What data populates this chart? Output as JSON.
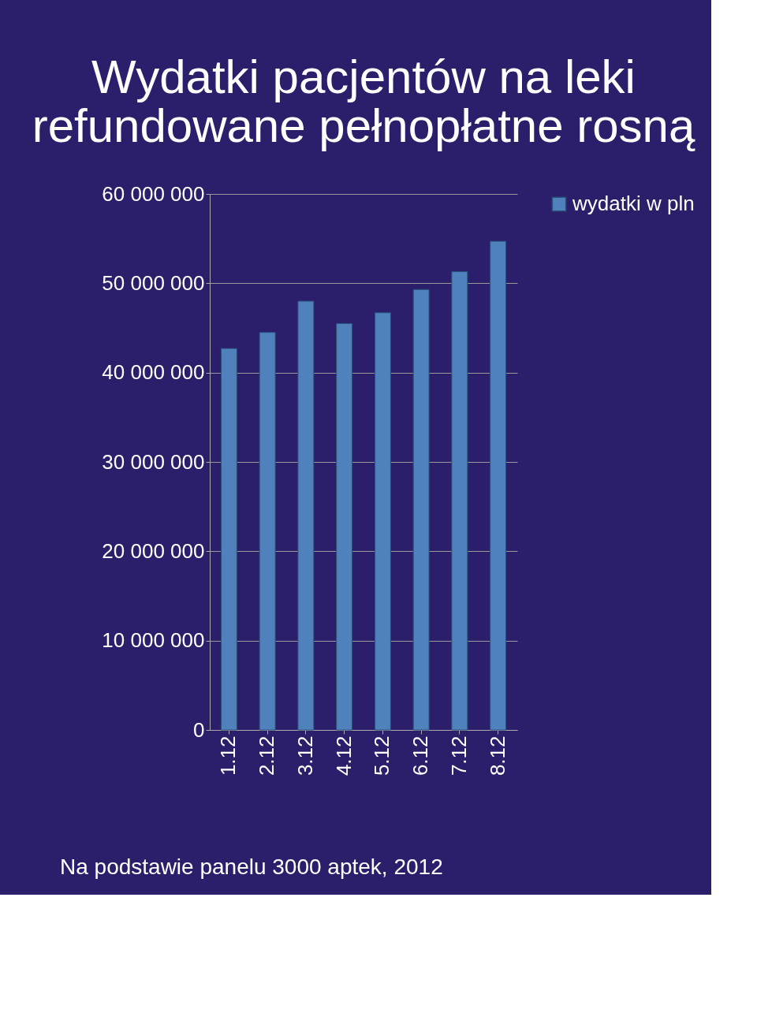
{
  "chart_data": {
    "type": "bar",
    "title": [
      "Wydatki pacjentów na leki",
      "refundowane pełnopłatne rosną"
    ],
    "categories": [
      "1.12",
      "2.12",
      "3.12",
      "4.12",
      "5.12",
      "6.12",
      "7.12",
      "8.12"
    ],
    "series": [
      {
        "name": "wydatki w pln",
        "color": "#4f81bd",
        "values": [
          42700000,
          44500000,
          48000000,
          45500000,
          46700000,
          49300000,
          51300000,
          54700000
        ]
      }
    ],
    "ylim": [
      0,
      60000000
    ],
    "yticks": [
      {
        "value": 0,
        "label": "0"
      },
      {
        "value": 10000000,
        "label": "10 000 000"
      },
      {
        "value": 20000000,
        "label": "20 000 000"
      },
      {
        "value": 30000000,
        "label": "30 000 000"
      },
      {
        "value": 40000000,
        "label": "40 000 000"
      },
      {
        "value": 50000000,
        "label": "50 000 000"
      },
      {
        "value": 60000000,
        "label": "60 000 000"
      }
    ],
    "grid": "y",
    "legend": "right",
    "annotations": [
      "Na podstawie panelu 3000 aptek, 2012"
    ]
  }
}
